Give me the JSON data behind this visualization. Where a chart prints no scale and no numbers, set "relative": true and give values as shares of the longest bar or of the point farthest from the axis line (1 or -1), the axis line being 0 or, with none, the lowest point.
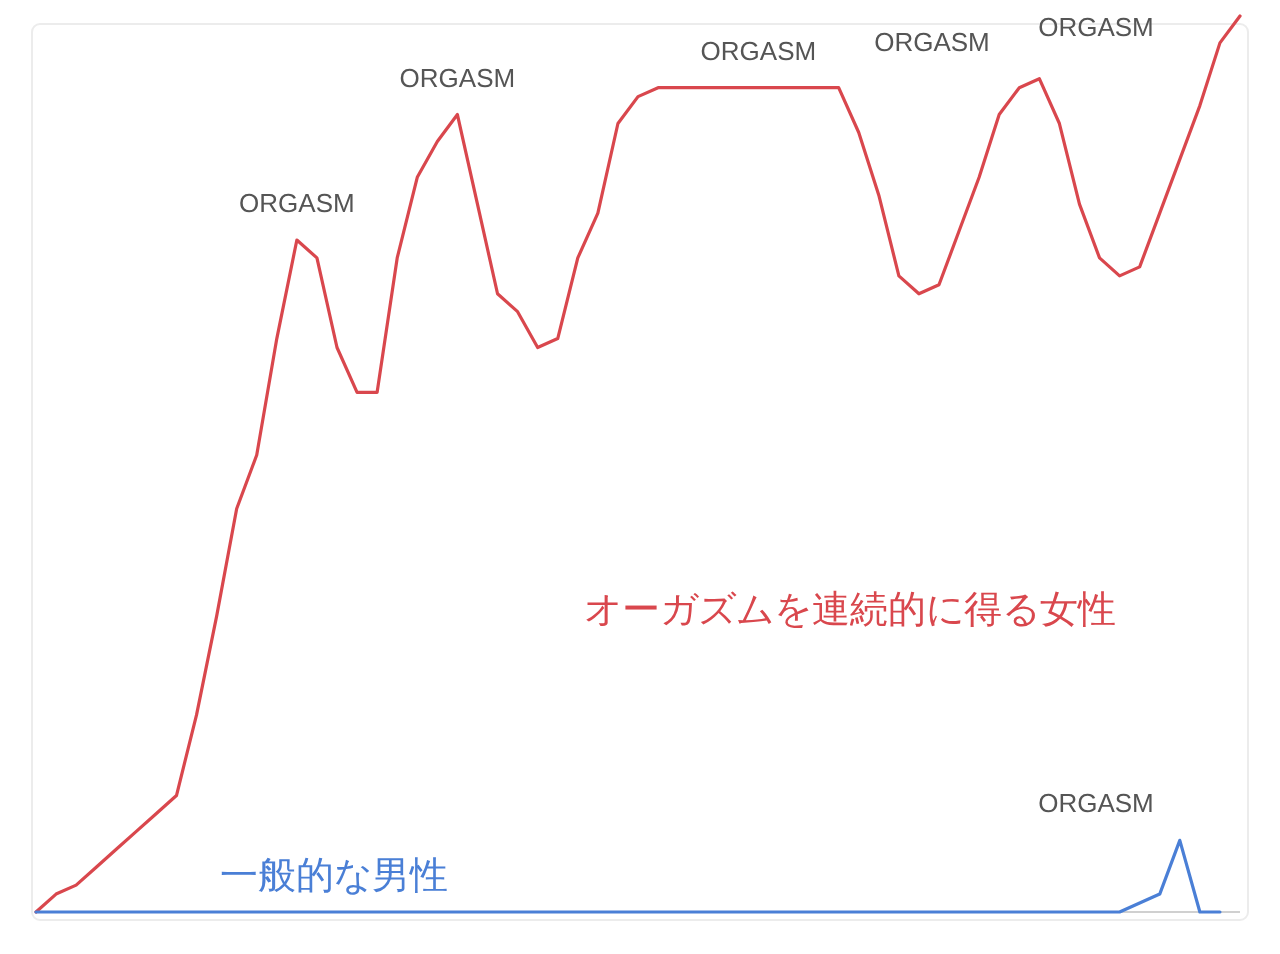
{
  "chart_data": {
    "type": "line",
    "relative": true,
    "categories": [
      null,
      null,
      null,
      null,
      null,
      null,
      null,
      null,
      null,
      null,
      null,
      null,
      null,
      null,
      null,
      null,
      null,
      null,
      null,
      null,
      null,
      null,
      null,
      null,
      null,
      null,
      null,
      null,
      null,
      null,
      null,
      null,
      null,
      null,
      null,
      null,
      null,
      null,
      null,
      null,
      null,
      null,
      null,
      null,
      null,
      null,
      null,
      null,
      null,
      null,
      null,
      null,
      null,
      null,
      null,
      null,
      null,
      null,
      null,
      null,
      null
    ],
    "series": [
      {
        "name": "オーガズムを連続的に得る女性",
        "color": "#d9474d",
        "values": [
          0,
          0.02,
          0.03,
          0.05,
          0.07,
          0.09,
          0.11,
          0.13,
          0.22,
          0.33,
          0.45,
          0.51,
          0.64,
          0.75,
          0.73,
          0.63,
          0.58,
          0.58,
          0.73,
          0.82,
          0.86,
          0.89,
          0.79,
          0.69,
          0.67,
          0.63,
          0.64,
          0.73,
          0.78,
          0.88,
          0.91,
          0.92,
          0.92,
          0.92,
          0.92,
          0.92,
          0.92,
          0.92,
          0.92,
          0.92,
          0.92,
          0.87,
          0.8,
          0.71,
          0.69,
          0.7,
          0.76,
          0.82,
          0.89,
          0.92,
          0.93,
          0.88,
          0.79,
          0.73,
          0.71,
          0.72,
          0.78,
          0.84,
          0.9,
          0.97,
          1
        ]
      },
      {
        "name": "一般的な男性",
        "color": "#4a7fd6",
        "values": [
          0,
          0,
          0,
          0,
          0,
          0,
          0,
          0,
          0,
          0,
          0,
          0,
          0,
          0,
          0,
          0,
          0,
          0,
          0,
          0,
          0,
          0,
          0,
          0,
          0,
          0,
          0,
          0,
          0,
          0,
          0,
          0,
          0,
          0,
          0,
          0,
          0,
          0,
          0,
          0,
          0,
          0,
          0,
          0,
          0,
          0,
          0,
          0,
          0,
          0,
          0,
          0,
          0,
          0,
          0,
          0.01,
          0.02,
          0.08,
          0,
          0,
          null
        ]
      }
    ],
    "annotations": [
      "ORGASM",
      "ORGASM",
      "ORGASM",
      "ORGASM",
      "ORGASM",
      "ORGASM"
    ]
  }
}
